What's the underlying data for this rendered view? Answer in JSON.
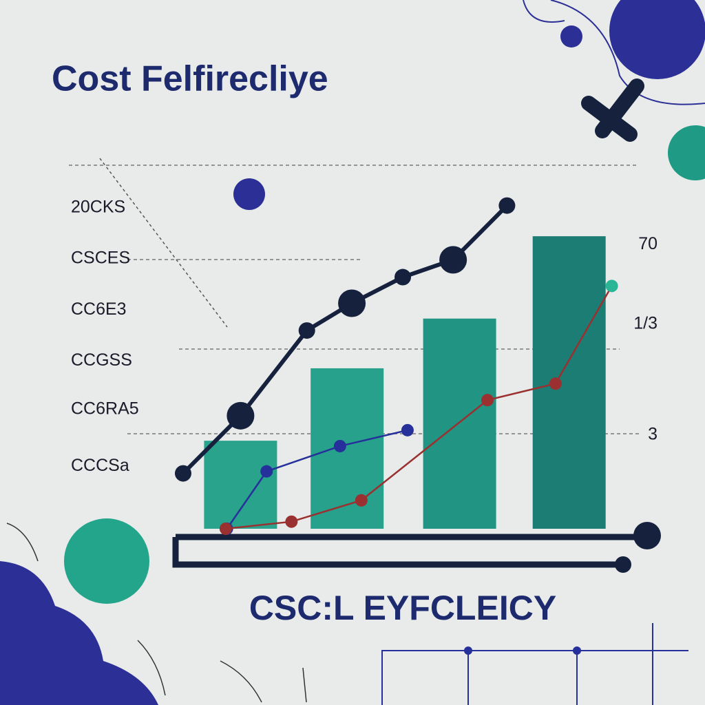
{
  "chart_data": {
    "type": "bar",
    "title": "Cost Felfirecliye",
    "caption": "CSC:L EYFCLEICY",
    "ylim": [
      -30,
      98
    ],
    "yticks": [
      {
        "value": 83,
        "label": "20CKS"
      },
      {
        "value": 65,
        "label": "CSCES"
      },
      {
        "value": 47,
        "label": "CC6E3"
      },
      {
        "value": 29,
        "label": "CCGSS"
      },
      {
        "value": 12,
        "label": "CC6RA5"
      },
      {
        "value": -8,
        "label": "CCCSa"
      }
    ],
    "y2ticks": [
      70,
      {
        "value": 42,
        "label": "1/3"
      },
      3
    ],
    "xlim": [
      0,
      100
    ],
    "bar_x": [
      29,
      47,
      66,
      84.5
    ],
    "values": [
      1,
      26.5,
      44,
      73
    ],
    "bar_colors": [
      "#2aa38d",
      "#27a08c",
      "#229484",
      "#1c7d74"
    ],
    "series": [
      {
        "color": "#16213e",
        "x": [
          19.3,
          29,
          40.2,
          47.8,
          56.4,
          64.9,
          74
        ],
        "values": [
          -10.5,
          9.8,
          39.8,
          49.4,
          58.6,
          64.7,
          83.8
        ]
      },
      {
        "color": "#25309a",
        "x": [
          26.7,
          33.4,
          45.8,
          57.2
        ],
        "values": [
          -30,
          -9.8,
          -0.9,
          4.7
        ]
      },
      {
        "color": "#9a3030",
        "x": [
          26.5,
          37.6,
          49.4,
          70.7,
          82.2,
          91.7
        ],
        "values": [
          -30,
          -27.5,
          -20,
          15.3,
          21.1,
          55.5
        ]
      }
    ]
  }
}
